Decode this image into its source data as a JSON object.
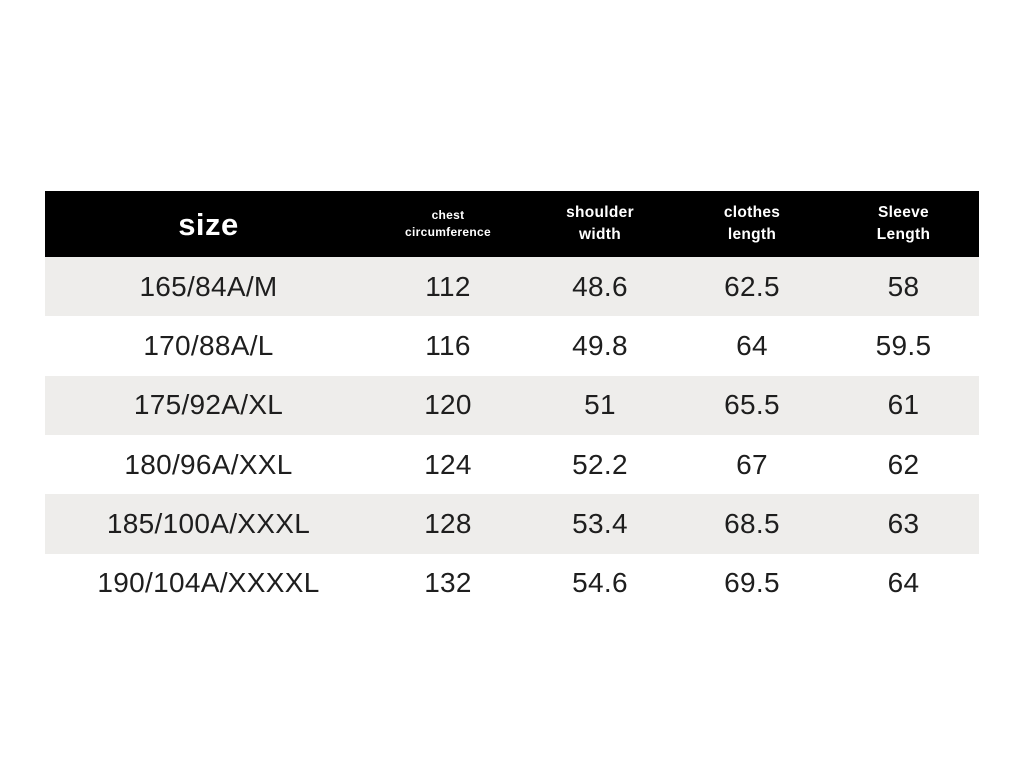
{
  "table": {
    "header": {
      "size_label": "size",
      "columns": [
        "chest\ncircumference",
        "shoulder\nwidth",
        "clothes\nlength",
        "Sleeve\nLength"
      ],
      "bg_color": "#000000",
      "text_color": "#ffffff"
    },
    "rows": [
      {
        "size": "165/84A/M",
        "chest": "112",
        "shoulder": "48.6",
        "clothes": "62.5",
        "sleeve": "58"
      },
      {
        "size": "170/88A/L",
        "chest": "116",
        "shoulder": "49.8",
        "clothes": "64",
        "sleeve": "59.5"
      },
      {
        "size": "175/92A/XL",
        "chest": "120",
        "shoulder": "51",
        "clothes": "65.5",
        "sleeve": "61"
      },
      {
        "size": "180/96A/XXL",
        "chest": "124",
        "shoulder": "52.2",
        "clothes": "67",
        "sleeve": "62"
      },
      {
        "size": "185/100A/XXXL",
        "chest": "128",
        "shoulder": "53.4",
        "clothes": "68.5",
        "sleeve": "63"
      },
      {
        "size": "190/104A/XXXXL",
        "chest": "132",
        "shoulder": "54.6",
        "clothes": "69.5",
        "sleeve": "64"
      }
    ],
    "stripe_color": "#eeedeb",
    "body_text_color": "#1e1e1e"
  },
  "chart_data": {
    "type": "table",
    "title": "size",
    "columns": [
      "size",
      "chest circumference",
      "shoulder width",
      "clothes length",
      "Sleeve Length"
    ],
    "rows": [
      [
        "165/84A/M",
        112,
        48.6,
        62.5,
        58
      ],
      [
        "170/88A/L",
        116,
        49.8,
        64,
        59.5
      ],
      [
        "175/92A/XL",
        120,
        51,
        65.5,
        61
      ],
      [
        "180/96A/XXL",
        124,
        52.2,
        67,
        62
      ],
      [
        "185/100A/XXXL",
        128,
        53.4,
        68.5,
        63
      ],
      [
        "190/104A/XXXXL",
        132,
        54.6,
        69.5,
        64
      ]
    ]
  }
}
